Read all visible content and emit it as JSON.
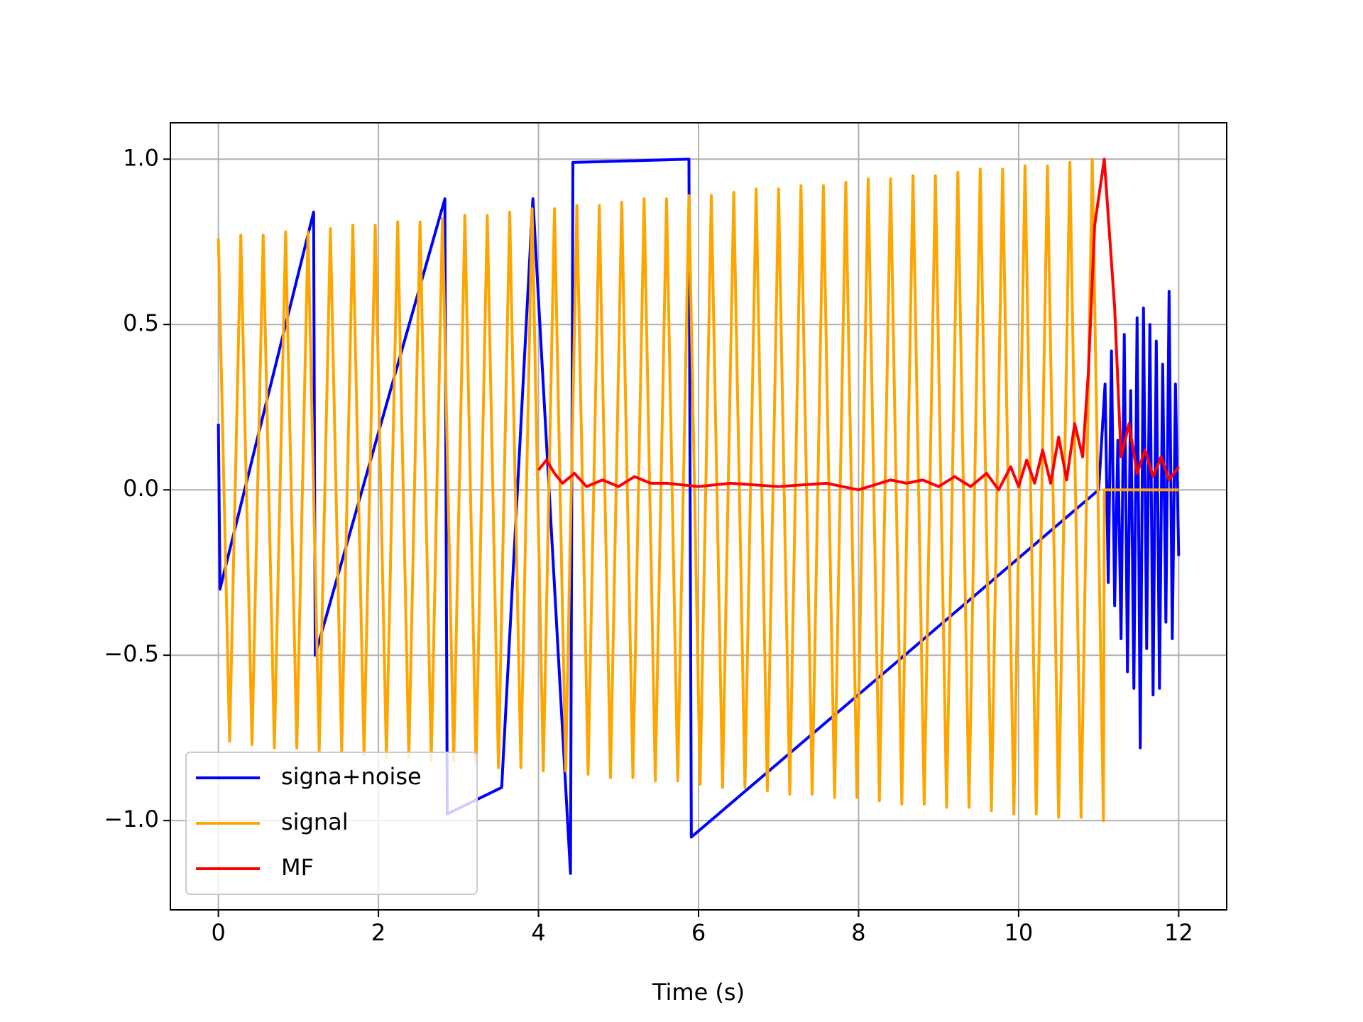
{
  "chart_data": {
    "type": "line",
    "x_label": "Time (s)",
    "xlim": [
      -0.6,
      12.6
    ],
    "ylim": [
      -1.27,
      1.11
    ],
    "xticks": [
      0,
      2,
      4,
      6,
      8,
      10,
      12
    ],
    "yticks": [
      {
        "value": -1.0,
        "label": "−1.0"
      },
      {
        "value": -0.5,
        "label": "−0.5"
      },
      {
        "value": 0.0,
        "label": "0.0"
      },
      {
        "value": 0.5,
        "label": "0.5"
      },
      {
        "value": 1.0,
        "label": "1.0"
      }
    ],
    "grid": true,
    "legend": "lower left",
    "series": [
      {
        "name": "signa+noise",
        "color": "#0000ff",
        "x": [
          0,
          0.02,
          1.19,
          1.21,
          2.83,
          2.86,
          3.54,
          3.93,
          4.4,
          4.43,
          5.88,
          5.91,
          11.0,
          11.08,
          11.12,
          11.16,
          11.2,
          11.24,
          11.28,
          11.32,
          11.36,
          11.4,
          11.44,
          11.48,
          11.52,
          11.56,
          11.6,
          11.64,
          11.68,
          11.72,
          11.76,
          11.8,
          11.84,
          11.88,
          11.92,
          11.96,
          12.0
        ],
        "values": [
          0.2,
          -0.3,
          0.84,
          -0.5,
          0.88,
          -0.98,
          -0.9,
          0.88,
          -1.16,
          0.99,
          1.0,
          -1.05,
          0.0,
          0.32,
          -0.28,
          0.42,
          -0.35,
          0.15,
          -0.45,
          0.47,
          -0.55,
          0.3,
          -0.6,
          0.52,
          -0.78,
          0.55,
          -0.48,
          0.5,
          -0.62,
          0.45,
          -0.6,
          0.38,
          -0.4,
          0.6,
          -0.45,
          0.32,
          -0.2
        ]
      },
      {
        "name": "signal",
        "color": "#ffa500",
        "x": [
          0,
          0.14,
          0.28,
          0.42,
          0.56,
          0.7,
          0.84,
          0.98,
          1.12,
          1.26,
          1.4,
          1.54,
          1.68,
          1.82,
          1.96,
          2.1,
          2.24,
          2.38,
          2.52,
          2.66,
          2.8,
          2.94,
          3.08,
          3.22,
          3.36,
          3.5,
          3.64,
          3.78,
          3.92,
          4.06,
          4.2,
          4.34,
          4.48,
          4.62,
          4.76,
          4.9,
          5.04,
          5.18,
          5.32,
          5.46,
          5.6,
          5.74,
          5.88,
          6.02,
          6.16,
          6.3,
          6.44,
          6.58,
          6.72,
          6.86,
          7.0,
          7.14,
          7.28,
          7.42,
          7.56,
          7.7,
          7.84,
          7.98,
          8.12,
          8.26,
          8.4,
          8.54,
          8.68,
          8.82,
          8.96,
          9.1,
          9.24,
          9.38,
          9.52,
          9.66,
          9.8,
          9.94,
          10.08,
          10.22,
          10.36,
          10.5,
          10.64,
          10.78,
          10.92,
          11.06,
          11.07,
          12.0
        ],
        "values": [
          0.76,
          -0.76,
          0.77,
          -0.77,
          0.77,
          -0.78,
          0.78,
          -0.78,
          0.78,
          -0.79,
          0.79,
          -0.79,
          0.8,
          -0.8,
          0.8,
          -0.81,
          0.81,
          -0.81,
          0.81,
          -0.82,
          0.82,
          -0.82,
          0.83,
          -0.83,
          0.83,
          -0.84,
          0.84,
          -0.84,
          0.85,
          -0.85,
          0.85,
          -0.85,
          0.86,
          -0.86,
          0.86,
          -0.87,
          0.87,
          -0.87,
          0.88,
          -0.88,
          0.88,
          -0.88,
          0.89,
          -0.89,
          0.89,
          -0.9,
          0.9,
          -0.9,
          0.91,
          -0.91,
          0.91,
          -0.92,
          0.92,
          -0.92,
          0.92,
          -0.93,
          0.93,
          -0.93,
          0.94,
          -0.94,
          0.94,
          -0.95,
          0.95,
          -0.95,
          0.95,
          -0.96,
          0.96,
          -0.96,
          0.97,
          -0.97,
          0.97,
          -0.98,
          0.98,
          -0.98,
          0.98,
          -0.99,
          0.99,
          -0.99,
          1.0,
          -1.0,
          0,
          0
        ]
      },
      {
        "name": "MF",
        "color": "#ff0000",
        "x": [
          4.0,
          4.1,
          4.2,
          4.3,
          4.45,
          4.6,
          4.8,
          5.0,
          5.2,
          5.4,
          5.6,
          6.0,
          6.4,
          7.0,
          7.6,
          8.0,
          8.4,
          8.6,
          8.8,
          9.0,
          9.2,
          9.4,
          9.6,
          9.75,
          9.9,
          10.0,
          10.1,
          10.2,
          10.3,
          10.4,
          10.5,
          10.6,
          10.7,
          10.8,
          10.87,
          10.95,
          11.07,
          11.2,
          11.28,
          11.38,
          11.48,
          11.58,
          11.68,
          11.78,
          11.88,
          12.0
        ],
        "values": [
          0.06,
          0.09,
          0.05,
          0.02,
          0.05,
          0.01,
          0.03,
          0.01,
          0.04,
          0.02,
          0.02,
          0.01,
          0.02,
          0.01,
          0.02,
          0.0,
          0.03,
          0.02,
          0.03,
          0.01,
          0.04,
          0.01,
          0.05,
          0.0,
          0.07,
          0.01,
          0.09,
          0.02,
          0.12,
          0.02,
          0.16,
          0.03,
          0.2,
          0.1,
          0.35,
          0.8,
          1.0,
          0.55,
          0.1,
          0.2,
          0.05,
          0.12,
          0.04,
          0.1,
          0.03,
          0.07
        ]
      }
    ]
  }
}
